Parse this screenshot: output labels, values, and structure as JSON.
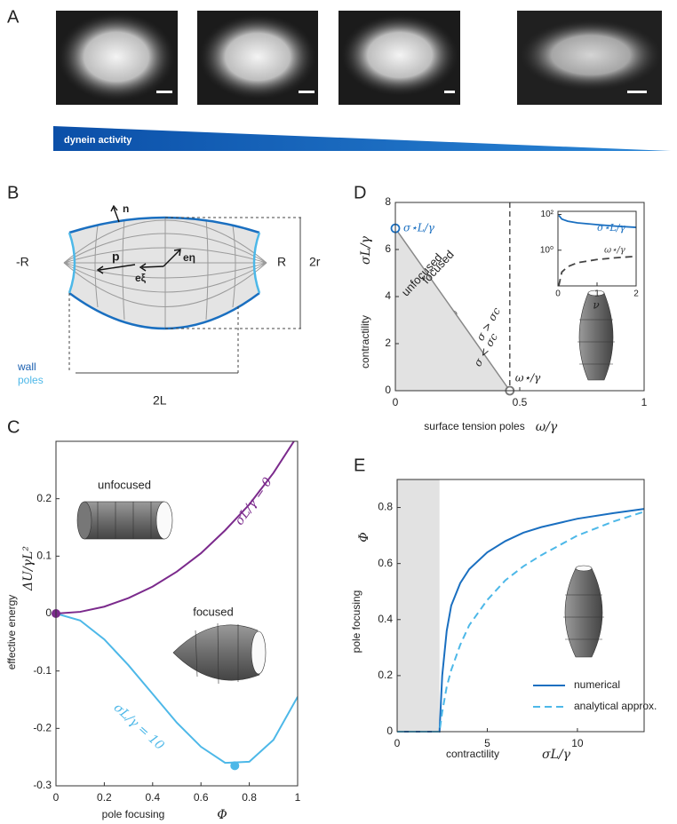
{
  "panel_labels": [
    "A",
    "B",
    "C",
    "D",
    "E"
  ],
  "panel_a": {
    "gradient_label": "dynein activity"
  },
  "panel_b": {
    "normal": "n",
    "polarity": "p",
    "e_eta": "eη",
    "e_xi": "eξ",
    "left_tip": "-R",
    "right_tip": "R",
    "width": "2r",
    "length": "2L",
    "legend": [
      "wall",
      "poles"
    ]
  },
  "chart_data": [
    {
      "type": "line",
      "xlabel": "pole focusing",
      "xlabel_symbol": "Φ",
      "ylabel": "effective energy",
      "ylabel_symbol": "ΔU/γL²",
      "annotations": [
        "unfocused",
        "focused"
      ],
      "x": [
        0,
        0.1,
        0.2,
        0.3,
        0.4,
        0.5,
        0.6,
        0.7,
        0.8,
        0.9,
        1
      ],
      "series": [
        {
          "name": "σL/γ = 0",
          "color": "#7b2a8c",
          "values": [
            0,
            0.003,
            0.012,
            0.027,
            0.047,
            0.073,
            0.105,
            0.145,
            0.19,
            0.245,
            0.31
          ]
        },
        {
          "name": "σL/γ = 10",
          "color": "#4db8e8",
          "values": [
            0,
            -0.012,
            -0.045,
            -0.09,
            -0.14,
            -0.19,
            -0.232,
            -0.26,
            -0.258,
            -0.22,
            -0.145
          ]
        }
      ],
      "points": [
        {
          "x": 0,
          "y": 0,
          "color": "#7b2a8c"
        },
        {
          "x": 0.74,
          "y": -0.265,
          "color": "#4db8e8"
        }
      ],
      "xlim": [
        0,
        1
      ],
      "xticks": [
        0,
        0.2,
        0.4,
        0.6,
        0.8,
        1
      ],
      "ylim": [
        -0.3,
        0.3
      ],
      "yticks": [
        0.2,
        0.1,
        0,
        -0.1,
        -0.2,
        -0.3
      ]
    },
    {
      "type": "phase",
      "xlabel": "surface tension poles",
      "xlabel_symbol": "ω/γ",
      "ylabel": "contractility",
      "ylabel_symbol": "σL/γ",
      "regions": [
        "focused",
        "unfocused"
      ],
      "conditions": [
        "σ > σc",
        "σ < σc"
      ],
      "boundary": {
        "x": [
          0,
          0.46
        ],
        "values": [
          6.9,
          0
        ]
      },
      "critical_points": [
        {
          "label": "σ⋆L/γ",
          "x": 0,
          "y": 6.9,
          "color": "#1a6fc0"
        },
        {
          "label": "ω⋆/γ",
          "x": 0.46,
          "y": 0,
          "color": "#777777"
        }
      ],
      "xlim": [
        0,
        1
      ],
      "xticks": [
        0,
        0.5,
        1
      ],
      "ylim": [
        0,
        8
      ],
      "yticks": [
        0,
        2,
        4,
        6,
        8
      ],
      "inset": {
        "type": "line",
        "xlabel_symbol": "ν",
        "log_y": true,
        "x": [
          0.02,
          0.1,
          0.25,
          0.5,
          1,
          1.5,
          2
        ],
        "series": [
          {
            "name": "σ⋆L/γ",
            "color": "#1a6fc0",
            "dash": false,
            "values": [
              90,
              55,
              42,
              34,
              27,
              22,
              19
            ]
          },
          {
            "name": "ω⋆/γ",
            "color": "#444444",
            "dash": true,
            "values": [
              0.01,
              0.06,
              0.12,
              0.2,
              0.3,
              0.38,
              0.45
            ]
          }
        ],
        "xlim": [
          0,
          2
        ],
        "xticks": [
          0,
          1,
          2
        ],
        "ylim": [
          0.01,
          150
        ],
        "yticks": [
          {
            "value": 1,
            "label": "10⁰"
          },
          {
            "value": 100,
            "label": "10²"
          }
        ]
      }
    },
    {
      "type": "line",
      "xlabel": "contractility",
      "xlabel_symbol": "σL/γ",
      "ylabel": "pole focusing",
      "ylabel_symbol": "Φ",
      "shaded_region": [
        0,
        2.35
      ],
      "x": [
        0,
        1,
        2,
        2.35,
        2.5,
        2.75,
        3,
        3.5,
        4,
        5,
        6,
        7,
        8,
        10,
        12,
        13.7
      ],
      "series": [
        {
          "name": "numerical",
          "color": "#1a6fc0",
          "dash": false,
          "values": [
            0,
            0,
            0,
            0,
            0.2,
            0.36,
            0.45,
            0.53,
            0.58,
            0.64,
            0.68,
            0.71,
            0.73,
            0.76,
            0.78,
            0.795
          ]
        },
        {
          "name": "analytical approx.",
          "color": "#4db8e8",
          "dash": true,
          "values": [
            0,
            0,
            0,
            0,
            0.07,
            0.16,
            0.22,
            0.31,
            0.38,
            0.47,
            0.54,
            0.59,
            0.63,
            0.7,
            0.75,
            0.785
          ]
        }
      ],
      "legend": "lower right",
      "xlim": [
        0,
        13.7
      ],
      "xticks": [
        0,
        5,
        10
      ],
      "ylim": [
        0,
        0.9
      ],
      "yticks": [
        0,
        0.2,
        0.4,
        0.6,
        0.8
      ]
    }
  ]
}
